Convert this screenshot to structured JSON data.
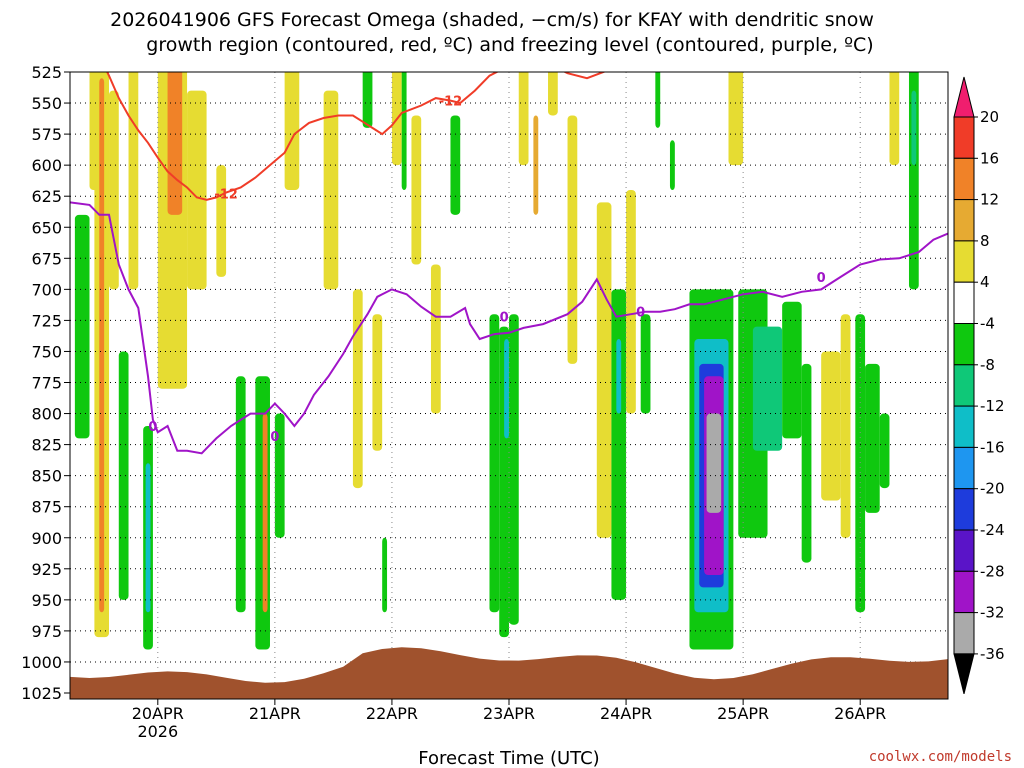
{
  "chart_data": {
    "type": "heatmap",
    "title_line1": "2026041906 GFS Forecast Omega (shaded, −cm/s) for KFAY with dendritic snow",
    "title_line2": "growth region (contoured, red, ºC) and freezing level (contoured, purple, ºC)",
    "xlabel": "Forecast Time (UTC)",
    "credit": "coolwx.com/models",
    "y_levels_hpa": [
      "525",
      "550",
      "575",
      "600",
      "625",
      "650",
      "675",
      "700",
      "725",
      "750",
      "775",
      "800",
      "825",
      "850",
      "875",
      "900",
      "925",
      "950",
      "975",
      "1000",
      "1025"
    ],
    "x_ticks": [
      {
        "label": "20APR",
        "sub": "2026",
        "t": 18
      },
      {
        "label": "21APR",
        "sub": "",
        "t": 42
      },
      {
        "label": "22APR",
        "sub": "",
        "t": 66
      },
      {
        "label": "23APR",
        "sub": "",
        "t": 90
      },
      {
        "label": "24APR",
        "sub": "",
        "t": 114
      },
      {
        "label": "25APR",
        "sub": "",
        "t": 138
      },
      {
        "label": "26APR",
        "sub": "",
        "t": 162
      }
    ],
    "x_range_hours": [
      0,
      180
    ],
    "colorbar_ticks": [
      "20",
      "16",
      "12",
      "8",
      "4",
      "-4",
      "-8",
      "-12",
      "-16",
      "-20",
      "-24",
      "-28",
      "-32",
      "-36"
    ],
    "colorbar_colors": [
      "#f01e6e",
      "#f03c28",
      "#f08228",
      "#e6aa32",
      "#e6dc32",
      "#ffffff",
      "#0fc80f",
      "#0fc878",
      "#0fbec8",
      "#1e96f0",
      "#1e3cdc",
      "#5a14c8",
      "#a014c8",
      "#aaaaaa",
      "#000000"
    ],
    "contour_label_red": "-12",
    "contour_label_purple": "0",
    "red_contour_color": "#f03c28",
    "purple_contour_color": "#a014c8",
    "ground_color": "#a0522d",
    "freezing_level_hpa": [
      [
        0,
        630
      ],
      [
        4,
        632
      ],
      [
        6,
        640
      ],
      [
        8,
        640
      ],
      [
        9,
        660
      ],
      [
        10,
        680
      ],
      [
        12,
        700
      ],
      [
        14,
        715
      ],
      [
        16,
        770
      ],
      [
        17,
        805
      ],
      [
        18,
        815
      ],
      [
        20,
        810
      ],
      [
        22,
        830
      ],
      [
        24,
        830
      ],
      [
        27,
        832
      ],
      [
        30,
        820
      ],
      [
        33,
        810
      ],
      [
        35,
        805
      ],
      [
        37,
        800
      ],
      [
        40,
        800
      ],
      [
        42,
        792
      ],
      [
        44,
        800
      ],
      [
        46,
        810
      ],
      [
        48,
        800
      ],
      [
        50,
        785
      ],
      [
        53,
        770
      ],
      [
        56,
        752
      ],
      [
        58,
        738
      ],
      [
        61,
        720
      ],
      [
        63,
        706
      ],
      [
        66,
        700
      ],
      [
        69,
        704
      ],
      [
        72,
        714
      ],
      [
        75,
        722
      ],
      [
        78,
        722
      ],
      [
        81,
        715
      ],
      [
        82,
        728
      ],
      [
        84,
        740
      ],
      [
        87,
        736
      ],
      [
        90,
        735
      ],
      [
        93,
        731
      ],
      [
        97,
        728
      ],
      [
        102,
        720
      ],
      [
        105,
        710
      ],
      [
        108,
        692
      ],
      [
        110,
        708
      ],
      [
        112,
        722
      ],
      [
        115,
        720
      ],
      [
        118,
        718
      ],
      [
        121,
        718
      ],
      [
        124,
        716
      ],
      [
        127,
        712
      ],
      [
        130,
        712
      ],
      [
        134,
        708
      ],
      [
        138,
        704
      ],
      [
        142,
        702
      ],
      [
        146,
        706
      ],
      [
        150,
        702
      ],
      [
        154,
        700
      ],
      [
        158,
        690
      ],
      [
        162,
        680
      ],
      [
        166,
        676
      ],
      [
        170,
        675
      ],
      [
        174,
        670
      ],
      [
        177,
        660
      ],
      [
        180,
        655
      ]
    ],
    "dgz_contour_hpa": [
      [
        3,
        508
      ],
      [
        6,
        512
      ],
      [
        8,
        528
      ],
      [
        10,
        546
      ],
      [
        12,
        560
      ],
      [
        14,
        572
      ],
      [
        16,
        582
      ],
      [
        18,
        594
      ],
      [
        20,
        605
      ],
      [
        22,
        612
      ],
      [
        24,
        618
      ],
      [
        26,
        626
      ],
      [
        28,
        628
      ],
      [
        30,
        626
      ],
      [
        32,
        622
      ],
      [
        35,
        618
      ],
      [
        38,
        610
      ],
      [
        41,
        600
      ],
      [
        44,
        590
      ],
      [
        46,
        575
      ],
      [
        49,
        566
      ],
      [
        52,
        562
      ],
      [
        55,
        560
      ],
      [
        58,
        560
      ],
      [
        60,
        565
      ],
      [
        62,
        570
      ],
      [
        64,
        575
      ],
      [
        66,
        568
      ],
      [
        68,
        558
      ],
      [
        72,
        552
      ],
      [
        75,
        546
      ],
      [
        78,
        548
      ],
      [
        80,
        550
      ],
      [
        83,
        540
      ],
      [
        86,
        528
      ],
      [
        90,
        520
      ],
      [
        94,
        516
      ],
      [
        98,
        518
      ],
      [
        102,
        526
      ],
      [
        106,
        530
      ],
      [
        110,
        524
      ],
      [
        114,
        518
      ],
      [
        118,
        512
      ],
      [
        122,
        510
      ]
    ],
    "omega_cells": [
      {
        "t0": 1,
        "t1": 4,
        "p0": 640,
        "p1": 820,
        "v": -6
      },
      {
        "t0": 4,
        "t1": 6,
        "p0": 520,
        "p1": 620,
        "v": 6
      },
      {
        "t0": 5,
        "t1": 8,
        "p0": 520,
        "p1": 980,
        "v": 6
      },
      {
        "t0": 6,
        "t1": 7,
        "p0": 530,
        "p1": 960,
        "v": 14
      },
      {
        "t0": 8,
        "t1": 10,
        "p0": 540,
        "p1": 700,
        "v": 6
      },
      {
        "t0": 10,
        "t1": 12,
        "p0": 750,
        "p1": 950,
        "v": -6
      },
      {
        "t0": 12,
        "t1": 14,
        "p0": 520,
        "p1": 700,
        "v": 5
      },
      {
        "t0": 15,
        "t1": 17,
        "p0": 810,
        "p1": 990,
        "v": -6
      },
      {
        "t0": 15.5,
        "t1": 16.5,
        "p0": 840,
        "p1": 960,
        "v": -14
      },
      {
        "t0": 18,
        "t1": 24,
        "p0": 520,
        "p1": 780,
        "v": 6
      },
      {
        "t0": 20,
        "t1": 23,
        "p0": 520,
        "p1": 640,
        "v": 12
      },
      {
        "t0": 21,
        "t1": 22,
        "p0": 520,
        "p1": 560,
        "v": 14
      },
      {
        "t0": 24,
        "t1": 28,
        "p0": 540,
        "p1": 700,
        "v": 5
      },
      {
        "t0": 30,
        "t1": 32,
        "p0": 600,
        "p1": 690,
        "v": 5
      },
      {
        "t0": 34,
        "t1": 36,
        "p0": 770,
        "p1": 960,
        "v": -6
      },
      {
        "t0": 38,
        "t1": 41,
        "p0": 770,
        "p1": 990,
        "v": -6
      },
      {
        "t0": 39.5,
        "t1": 40.5,
        "p0": 800,
        "p1": 960,
        "v": 12
      },
      {
        "t0": 42,
        "t1": 44,
        "p0": 800,
        "p1": 900,
        "v": -6
      },
      {
        "t0": 44,
        "t1": 47,
        "p0": 520,
        "p1": 620,
        "v": 5
      },
      {
        "t0": 52,
        "t1": 55,
        "p0": 540,
        "p1": 700,
        "v": 5
      },
      {
        "t0": 58,
        "t1": 60,
        "p0": 700,
        "p1": 860,
        "v": 5
      },
      {
        "t0": 60,
        "t1": 62,
        "p0": 520,
        "p1": 570,
        "v": -6
      },
      {
        "t0": 62,
        "t1": 64,
        "p0": 720,
        "p1": 830,
        "v": 5
      },
      {
        "t0": 64,
        "t1": 65,
        "p0": 900,
        "p1": 960,
        "v": -6
      },
      {
        "t0": 66,
        "t1": 68,
        "p0": 520,
        "p1": 600,
        "v": 5
      },
      {
        "t0": 68,
        "t1": 69,
        "p0": 520,
        "p1": 620,
        "v": -6
      },
      {
        "t0": 70,
        "t1": 72,
        "p0": 560,
        "p1": 680,
        "v": 6
      },
      {
        "t0": 74,
        "t1": 76,
        "p0": 680,
        "p1": 800,
        "v": 5
      },
      {
        "t0": 78,
        "t1": 80,
        "p0": 560,
        "p1": 640,
        "v": -6
      },
      {
        "t0": 86,
        "t1": 88,
        "p0": 720,
        "p1": 960,
        "v": -6
      },
      {
        "t0": 88,
        "t1": 90,
        "p0": 730,
        "p1": 980,
        "v": -6
      },
      {
        "t0": 89,
        "t1": 90,
        "p0": 740,
        "p1": 820,
        "v": -14
      },
      {
        "t0": 90,
        "t1": 92,
        "p0": 720,
        "p1": 970,
        "v": -6
      },
      {
        "t0": 92,
        "t1": 94,
        "p0": 520,
        "p1": 600,
        "v": 6
      },
      {
        "t0": 95,
        "t1": 96,
        "p0": 560,
        "p1": 640,
        "v": 10
      },
      {
        "t0": 98,
        "t1": 100,
        "p0": 520,
        "p1": 560,
        "v": 5
      },
      {
        "t0": 102,
        "t1": 104,
        "p0": 560,
        "p1": 760,
        "v": 5
      },
      {
        "t0": 108,
        "t1": 111,
        "p0": 630,
        "p1": 900,
        "v": 5
      },
      {
        "t0": 111,
        "t1": 114,
        "p0": 700,
        "p1": 950,
        "v": -6
      },
      {
        "t0": 112,
        "t1": 113,
        "p0": 740,
        "p1": 800,
        "v": -14
      },
      {
        "t0": 114,
        "t1": 116,
        "p0": 620,
        "p1": 800,
        "v": 5
      },
      {
        "t0": 117,
        "t1": 119,
        "p0": 720,
        "p1": 800,
        "v": -6
      },
      {
        "t0": 120,
        "t1": 121,
        "p0": 520,
        "p1": 570,
        "v": -6
      },
      {
        "t0": 123,
        "t1": 124,
        "p0": 580,
        "p1": 620,
        "v": -6
      },
      {
        "t0": 127,
        "t1": 136,
        "p0": 700,
        "p1": 990,
        "v": -8
      },
      {
        "t0": 128,
        "t1": 135,
        "p0": 740,
        "p1": 960,
        "v": -14
      },
      {
        "t0": 129,
        "t1": 134,
        "p0": 760,
        "p1": 940,
        "v": -22
      },
      {
        "t0": 130,
        "t1": 134,
        "p0": 770,
        "p1": 930,
        "v": -30
      },
      {
        "t0": 130.5,
        "t1": 133.5,
        "p0": 800,
        "p1": 880,
        "v": -34
      },
      {
        "t0": 135,
        "t1": 138,
        "p0": 520,
        "p1": 600,
        "v": 5
      },
      {
        "t0": 137,
        "t1": 143,
        "p0": 700,
        "p1": 900,
        "v": -6
      },
      {
        "t0": 140,
        "t1": 146,
        "p0": 730,
        "p1": 830,
        "v": -10
      },
      {
        "t0": 146,
        "t1": 150,
        "p0": 710,
        "p1": 820,
        "v": -6
      },
      {
        "t0": 150,
        "t1": 152,
        "p0": 760,
        "p1": 920,
        "v": -6
      },
      {
        "t0": 154,
        "t1": 158,
        "p0": 750,
        "p1": 870,
        "v": 5
      },
      {
        "t0": 158,
        "t1": 160,
        "p0": 720,
        "p1": 900,
        "v": 5
      },
      {
        "t0": 161,
        "t1": 163,
        "p0": 720,
        "p1": 960,
        "v": -6
      },
      {
        "t0": 163,
        "t1": 166,
        "p0": 760,
        "p1": 880,
        "v": -6
      },
      {
        "t0": 166,
        "t1": 168,
        "p0": 800,
        "p1": 860,
        "v": -6
      },
      {
        "t0": 168,
        "t1": 170,
        "p0": 520,
        "p1": 600,
        "v": 5
      },
      {
        "t0": 172,
        "t1": 174,
        "p0": 520,
        "p1": 700,
        "v": -6
      },
      {
        "t0": 172.5,
        "t1": 173.5,
        "p0": 540,
        "p1": 600,
        "v": -12
      }
    ]
  }
}
